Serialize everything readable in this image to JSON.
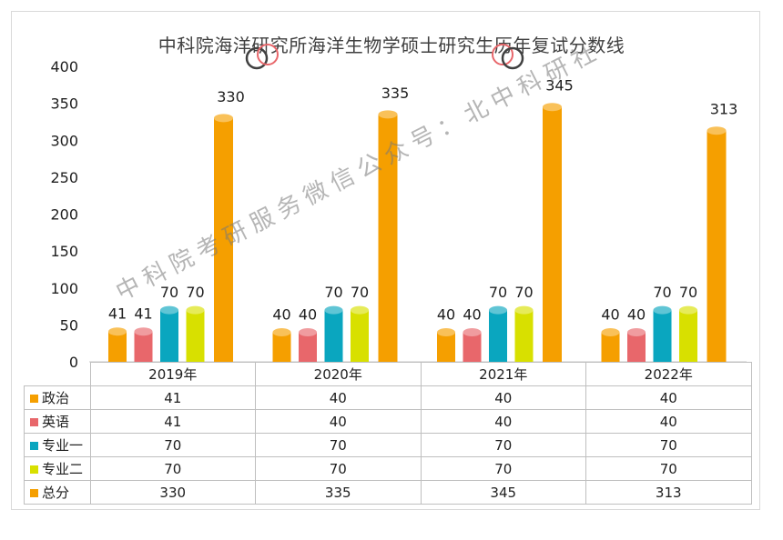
{
  "chart_data": {
    "type": "bar",
    "title": "中科院海洋研究所海洋生物学硕士研究生历年复试分数线",
    "categories": [
      "2019年",
      "2020年",
      "2021年",
      "2022年"
    ],
    "ylim": [
      0,
      400
    ],
    "yticks": [
      0,
      50,
      100,
      150,
      200,
      250,
      300,
      350,
      400
    ],
    "grid": false,
    "legend_placement": "data-table-bottom",
    "series": [
      {
        "name": "政治",
        "color": "#f59f00",
        "values": [
          41,
          40,
          40,
          40
        ]
      },
      {
        "name": "英语",
        "color": "#e8676b",
        "values": [
          41,
          40,
          40,
          40
        ]
      },
      {
        "name": "专业一",
        "color": "#0aa6bf",
        "values": [
          70,
          70,
          70,
          70
        ]
      },
      {
        "name": "专业二",
        "color": "#d8e000",
        "values": [
          70,
          70,
          70,
          70
        ]
      },
      {
        "name": "总分",
        "color": "#f59f00",
        "values": [
          330,
          335,
          345,
          313
        ]
      }
    ]
  },
  "watermark": "中科院考研服务微信公众号：北中科研社"
}
